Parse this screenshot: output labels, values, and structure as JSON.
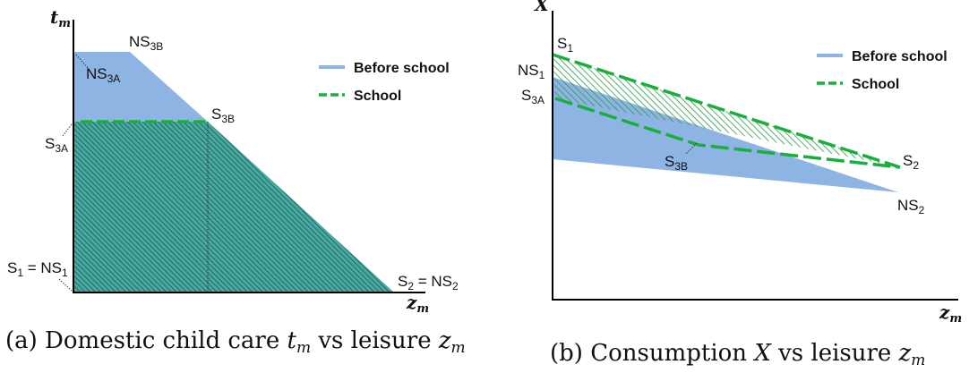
{
  "panel_a": {
    "y_axis": {
      "base": "t",
      "sub": "m"
    },
    "x_axis": {
      "base": "z",
      "sub": "m"
    },
    "labels": {
      "ns3b_top": {
        "base": "NS",
        "sub": "3B"
      },
      "ns3a": {
        "base": "NS",
        "sub": "3A"
      },
      "s3b": {
        "base": "S",
        "sub": "3B"
      },
      "s3a": {
        "base": "S",
        "sub": "3A"
      },
      "s1_ns1": {
        "base1": "S",
        "sub1": "1",
        "mid": " = NS",
        "sub2": "1"
      },
      "s2_ns2": {
        "base1": "S",
        "sub1": "2",
        "mid": " = NS",
        "sub2": "2"
      }
    },
    "legend": {
      "before": "Before school",
      "school": "School"
    },
    "caption": {
      "prefix": "(a) Domestic child care ",
      "v1": "t",
      "v1sub": "m",
      "mid": " vs leisure ",
      "v2": "z",
      "v2sub": "m"
    }
  },
  "panel_b": {
    "y_axis": {
      "base": "X"
    },
    "x_axis": {
      "base": "z",
      "sub": "m"
    },
    "labels": {
      "s1": {
        "base": "S",
        "sub": "1"
      },
      "ns1": {
        "base": "NS",
        "sub": "1"
      },
      "s3a": {
        "base": "S",
        "sub": "3A"
      },
      "s3b": {
        "base": "S",
        "sub": "3B"
      },
      "s2": {
        "base": "S",
        "sub": "2"
      },
      "ns2": {
        "base": "NS",
        "sub": "2"
      }
    },
    "legend": {
      "before": "Before school",
      "school": "School"
    },
    "caption": {
      "prefix": "(b) Consumption ",
      "v1": "X",
      "mid": " vs leisure ",
      "v2": "z",
      "v2sub": "m"
    }
  },
  "colors": {
    "before": "#8eb4e3",
    "school": "#1aae3c",
    "hatch": "#1f7a5c",
    "axis": "#000000"
  }
}
